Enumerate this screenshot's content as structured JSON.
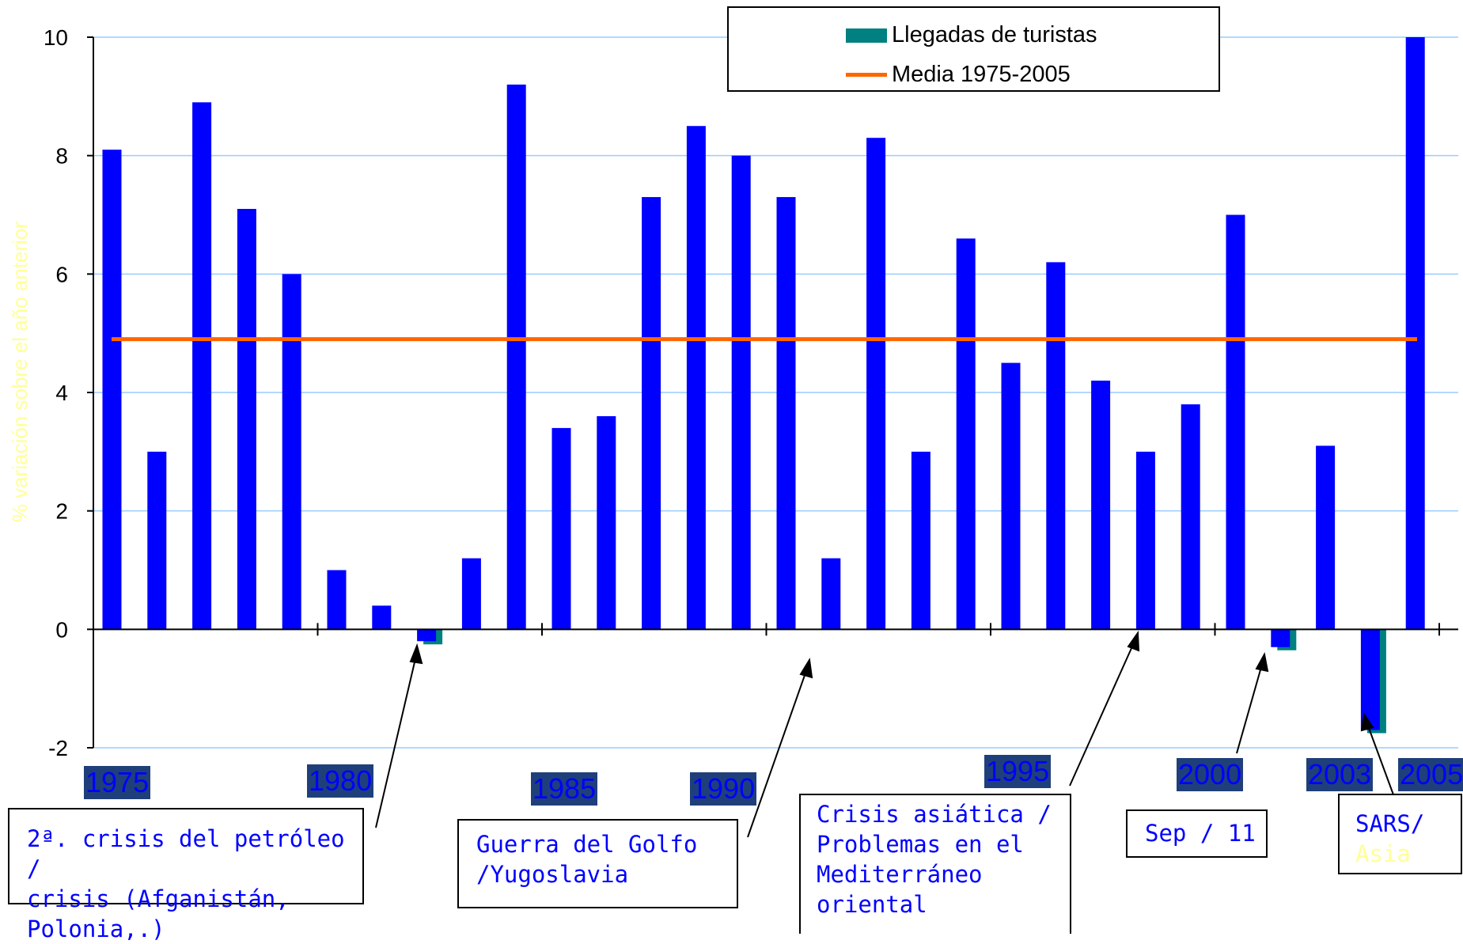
{
  "chart_data": {
    "type": "bar",
    "title": "",
    "ylabel": "% variación sobre el año anterior",
    "ylim": [
      -2,
      10
    ],
    "yticks": [
      "10",
      "8",
      "6",
      "4",
      "2",
      "0",
      "-2"
    ],
    "grid": true,
    "legend_placement": "top-right",
    "series": [
      {
        "name": "Llegadas de turistas",
        "x": [
          1975,
          1976,
          1977,
          1978,
          1979,
          1980,
          1981,
          1982,
          1983,
          1984,
          1985,
          1986,
          1987,
          1988,
          1989,
          1990,
          1991,
          1992,
          1993,
          1994,
          1995,
          1996,
          1997,
          1998,
          1999,
          2000,
          2001,
          2002,
          2003,
          2004,
          2005
        ],
        "values": [
          8.1,
          3.0,
          8.9,
          7.1,
          6.0,
          1.0,
          0.4,
          -0.2,
          1.2,
          9.2,
          3.4,
          3.6,
          7.3,
          8.5,
          8.0,
          7.3,
          1.2,
          8.3,
          3.0,
          6.6,
          4.5,
          6.2,
          4.2,
          3.0,
          3.8,
          7.0,
          -0.3,
          3.1,
          -1.7,
          10.0,
          null
        ]
      },
      {
        "name": "Media 1975-2005",
        "value": 4.9
      }
    ],
    "year_labels": [
      "1975",
      "1980",
      "1985",
      "1990",
      "1995",
      "2000",
      "2003",
      "2005"
    ]
  },
  "legend": {
    "arrivals": "Llegadas de turistas",
    "mean": "Media 1975-2005"
  },
  "annotations": {
    "oil": {
      "line1": "2ª.  crisis del petróleo /",
      "line2": "crisis (Afganistán,",
      "line3": "Polonia,.)"
    },
    "gulf": {
      "line1": "Guerra del Golfo",
      "line2": "/Yugoslavia"
    },
    "asia": {
      "line1": "Crisis asiática /",
      "line2": "Problemas en el",
      "line3": "Mediterráneo",
      "line4": "oriental"
    },
    "sep": {
      "line1": "Sep / 11"
    },
    "sars": {
      "line1": "SARS/",
      "line2": "Asia"
    }
  },
  "colors": {
    "bar": "#0000ff",
    "bar_shadow": "#008080",
    "mean_line": "#ff6600",
    "grid": "#99ccff",
    "year_tag_bg": "#1f3f7a",
    "ylabel": "#ffff99"
  }
}
